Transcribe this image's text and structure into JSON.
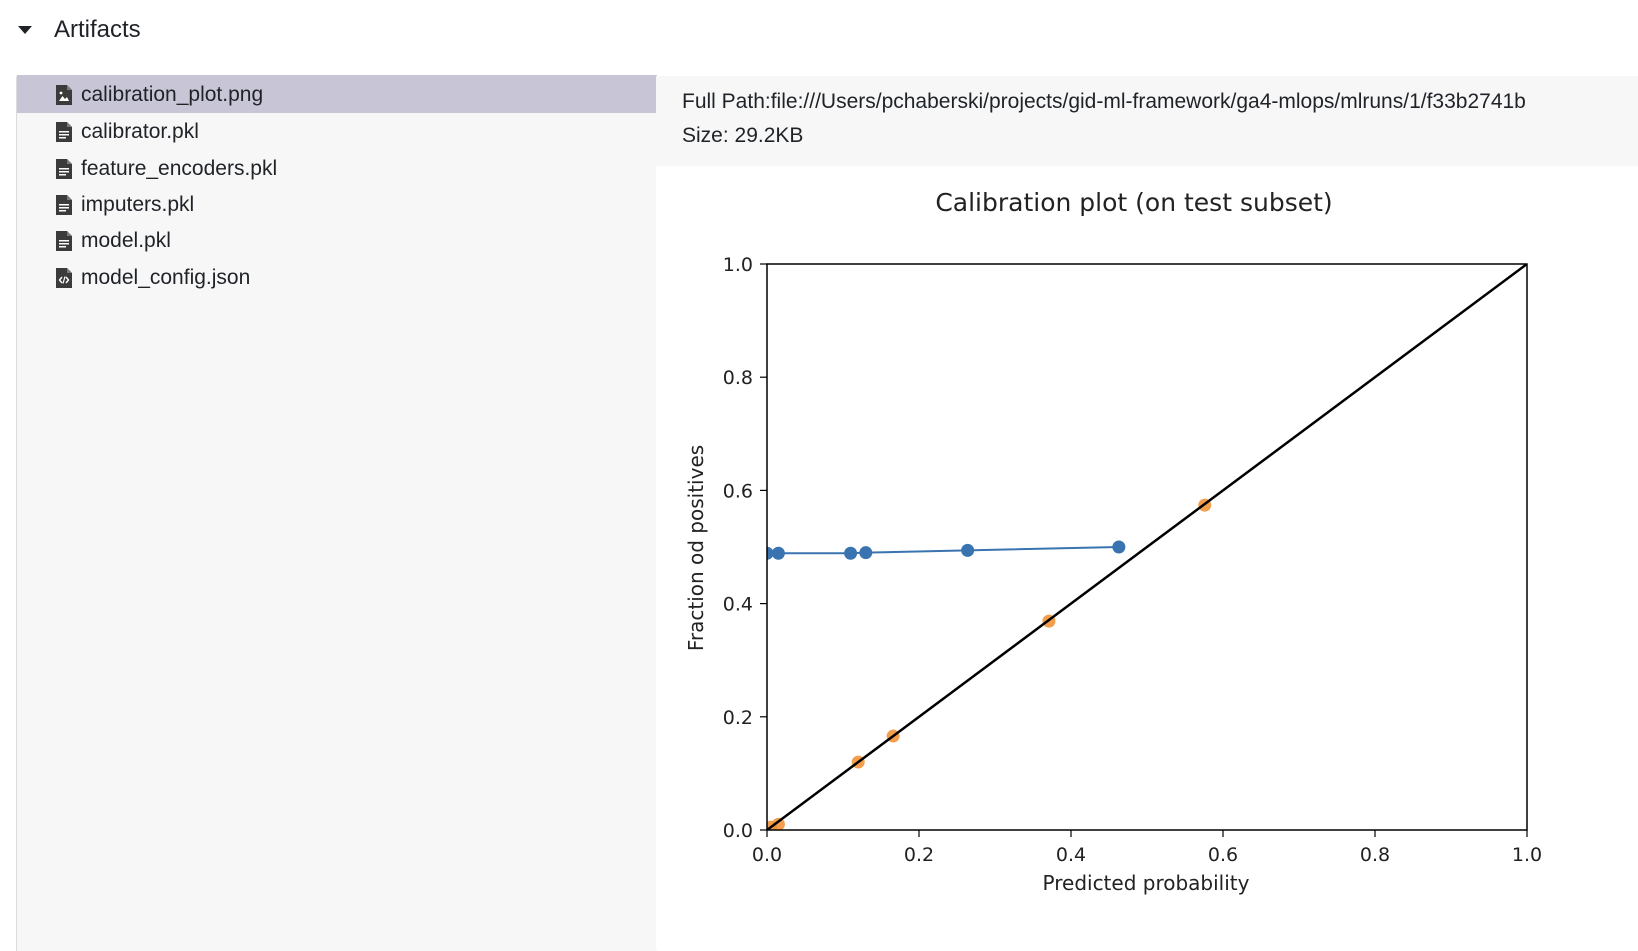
{
  "section": {
    "title": "Artifacts"
  },
  "files": [
    {
      "name": "calibration_plot.png",
      "icon": "image-file-icon",
      "selected": true
    },
    {
      "name": "calibrator.pkl",
      "icon": "file-icon",
      "selected": false
    },
    {
      "name": "feature_encoders.pkl",
      "icon": "file-icon",
      "selected": false
    },
    {
      "name": "imputers.pkl",
      "icon": "file-icon",
      "selected": false
    },
    {
      "name": "model.pkl",
      "icon": "file-icon",
      "selected": false
    },
    {
      "name": "model_config.json",
      "icon": "code-file-icon",
      "selected": false
    }
  ],
  "preview": {
    "full_path_label": "Full Path:",
    "full_path": "file:///Users/pchaberski/projects/gid-ml-framework/ga4-mlops/mlruns/1/f33b2741b",
    "size_label": "Size:",
    "size": "29.2KB"
  },
  "colors": {
    "selected_row": "#c8c6d6",
    "series_blue": "#3a74b0",
    "series_orange": "#f08d2e"
  },
  "chart_data": {
    "type": "scatter",
    "title": "Calibration plot (on test subset)",
    "xlabel": "Predicted probability",
    "ylabel": "Fraction od positives",
    "xlim": [
      0,
      1
    ],
    "ylim": [
      0,
      1
    ],
    "xticks": [
      "0.0",
      "0.2",
      "0.4",
      "0.6",
      "0.8",
      "1.0"
    ],
    "yticks": [
      "0.0",
      "0.2",
      "0.4",
      "0.6",
      "0.8",
      "1.0"
    ],
    "grid": false,
    "series": [
      {
        "color": "#3a74b0",
        "line": true,
        "x": [
          0.0,
          0.015,
          0.11,
          0.13,
          0.264,
          0.463
        ],
        "y": [
          0.489,
          0.489,
          0.489,
          0.49,
          0.494,
          0.5
        ]
      },
      {
        "color": "#f08d2e",
        "line": false,
        "x": [
          0.005,
          0.015,
          0.12,
          0.166,
          0.371,
          0.576
        ],
        "y": [
          0.005,
          0.01,
          0.12,
          0.166,
          0.369,
          0.574
        ]
      },
      {
        "color": "#000000",
        "line": true,
        "markers": false,
        "x": [
          0,
          1
        ],
        "y": [
          0,
          1
        ]
      }
    ]
  }
}
